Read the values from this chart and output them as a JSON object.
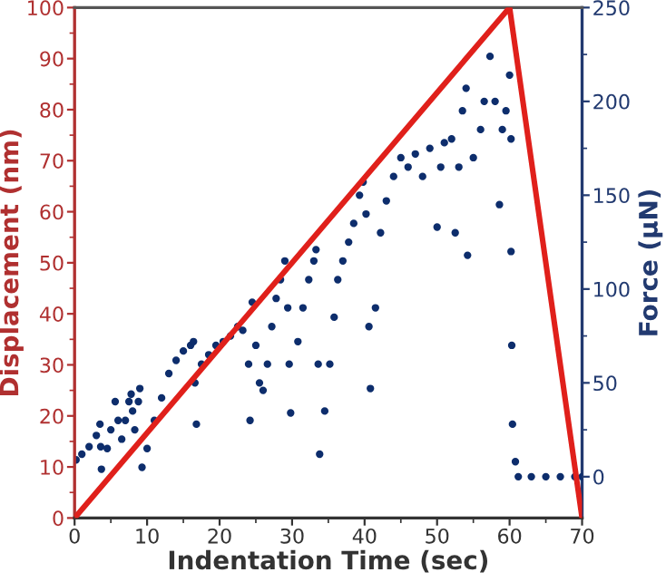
{
  "chart_data": {
    "type": "scatter",
    "xlabel": "Indentation Time (sec)",
    "ylabel": "Displacement (nm)",
    "y2label": "Force (μN)",
    "xlim": [
      0,
      70
    ],
    "xticks": [
      0,
      10,
      20,
      30,
      40,
      50,
      60,
      70
    ],
    "ylim": [
      0,
      100
    ],
    "yticks": [
      0,
      10,
      20,
      30,
      40,
      50,
      60,
      70,
      80,
      90,
      100
    ],
    "y2lim": [
      -22,
      250
    ],
    "y2ticks": [
      0,
      50,
      100,
      150,
      200,
      250
    ],
    "grid": false,
    "legend": false,
    "series": [
      {
        "type": "line",
        "axis": "y",
        "color": "#e0201b",
        "marker": "none",
        "x": [
          0,
          60,
          70
        ],
        "values": [
          0,
          100,
          0
        ]
      },
      {
        "axis": "y2",
        "color": "#0d2d6c",
        "marker": "circle",
        "x": [
          0.2,
          1,
          2,
          3,
          3.5,
          3.6,
          3.7,
          4.5,
          5,
          5.6,
          6,
          6.5,
          7,
          7.5,
          7.8,
          8,
          8.3,
          8.8,
          9,
          9.3,
          10,
          11,
          12,
          13,
          14,
          15,
          16,
          16.4,
          16.6,
          16.8,
          17.5,
          18.5,
          19.5,
          20.5,
          21.5,
          22.5,
          23.2,
          24,
          24.2,
          24.5,
          25,
          25.5,
          26,
          26.6,
          27.2,
          27.8,
          28.4,
          29,
          29.4,
          29.6,
          29.8,
          30.8,
          31.5,
          32.3,
          33,
          33.3,
          33.6,
          33.8,
          34.5,
          35.2,
          35.8,
          36.3,
          37,
          37.8,
          38.5,
          39.3,
          39.8,
          40.2,
          40.6,
          40.8,
          41.5,
          42.2,
          43,
          44,
          45,
          46,
          47,
          48,
          49,
          50,
          50.5,
          51,
          52,
          52.5,
          53,
          53.5,
          54,
          54.2,
          55,
          56,
          56.5,
          57.3,
          58,
          58.6,
          59,
          59.5,
          60,
          60.2,
          60.2,
          60.3,
          60.4,
          60.8,
          61.2,
          63,
          65,
          67,
          69,
          70
        ],
        "values": [
          9,
          12,
          16,
          22,
          28,
          16,
          4,
          15,
          25,
          40,
          30,
          20,
          30,
          40,
          44,
          35,
          25,
          40,
          47,
          5,
          15,
          30,
          42,
          55,
          62,
          67,
          70,
          72,
          50,
          28,
          60,
          65,
          70,
          72,
          75,
          80,
          78,
          60,
          30,
          93,
          70,
          50,
          46,
          60,
          80,
          95,
          105,
          115,
          90,
          60,
          34,
          72,
          90,
          105,
          115,
          121,
          60,
          12,
          35,
          60,
          85,
          105,
          115,
          125,
          135,
          150,
          157,
          140,
          80,
          47,
          90,
          130,
          147,
          160,
          170,
          165,
          172,
          160,
          175,
          133,
          165,
          178,
          180,
          130,
          165,
          195,
          207,
          118,
          170,
          185,
          200,
          224,
          200,
          145,
          185,
          195,
          214,
          180,
          120,
          70,
          28,
          8,
          0,
          0,
          0,
          0,
          0,
          0
        ]
      }
    ]
  }
}
